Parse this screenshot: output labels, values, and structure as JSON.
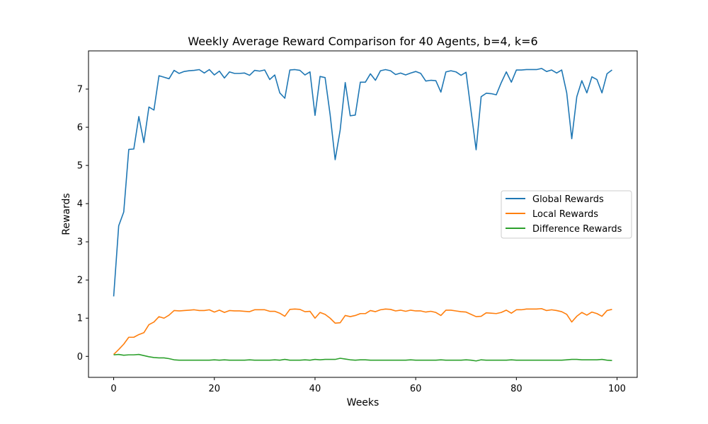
{
  "chart_data": {
    "type": "line",
    "title": "Weekly Average Reward Comparison for 40 Agents, b=4, k=6",
    "xlabel": "Weeks",
    "ylabel": "Rewards",
    "xlim": [
      -5,
      104
    ],
    "ylim": [
      -0.55,
      8.0
    ],
    "xticks": [
      0,
      20,
      40,
      60,
      80,
      100
    ],
    "yticks": [
      0,
      1,
      2,
      3,
      4,
      5,
      6,
      7
    ],
    "grid": false,
    "legend_position": "center-right",
    "series": [
      {
        "name": "Global Rewards",
        "color": "#1f77b4",
        "values": [
          1.57,
          3.42,
          3.78,
          5.42,
          5.43,
          6.28,
          5.6,
          6.53,
          6.45,
          7.35,
          7.31,
          7.27,
          7.49,
          7.41,
          7.46,
          7.48,
          7.49,
          7.51,
          7.42,
          7.51,
          7.37,
          7.47,
          7.29,
          7.45,
          7.41,
          7.41,
          7.42,
          7.36,
          7.49,
          7.47,
          7.5,
          7.25,
          7.37,
          6.9,
          6.76,
          7.5,
          7.51,
          7.49,
          7.37,
          7.45,
          6.31,
          7.33,
          7.3,
          6.33,
          5.15,
          5.93,
          7.17,
          6.3,
          6.32,
          7.18,
          7.18,
          7.4,
          7.23,
          7.48,
          7.51,
          7.48,
          7.38,
          7.42,
          7.37,
          7.42,
          7.46,
          7.41,
          7.21,
          7.23,
          7.22,
          6.92,
          7.45,
          7.48,
          7.45,
          7.36,
          7.44,
          6.42,
          5.41,
          6.8,
          6.89,
          6.88,
          6.85,
          7.17,
          7.45,
          7.18,
          7.5,
          7.5,
          7.51,
          7.51,
          7.51,
          7.54,
          7.46,
          7.5,
          7.42,
          7.5,
          6.9,
          5.7,
          6.8,
          7.22,
          6.9,
          7.32,
          7.25,
          6.9,
          7.4,
          7.5
        ]
      },
      {
        "name": "Local Rewards",
        "color": "#ff7f0e",
        "values": [
          0.05,
          0.18,
          0.32,
          0.5,
          0.5,
          0.57,
          0.62,
          0.83,
          0.9,
          1.04,
          1.0,
          1.08,
          1.2,
          1.19,
          1.2,
          1.21,
          1.22,
          1.2,
          1.2,
          1.22,
          1.16,
          1.21,
          1.15,
          1.2,
          1.19,
          1.19,
          1.18,
          1.17,
          1.22,
          1.22,
          1.22,
          1.18,
          1.18,
          1.13,
          1.05,
          1.23,
          1.24,
          1.23,
          1.17,
          1.18,
          1.0,
          1.15,
          1.1,
          1.0,
          0.87,
          0.88,
          1.07,
          1.04,
          1.07,
          1.12,
          1.12,
          1.2,
          1.17,
          1.22,
          1.24,
          1.23,
          1.19,
          1.21,
          1.18,
          1.21,
          1.19,
          1.19,
          1.16,
          1.18,
          1.15,
          1.07,
          1.21,
          1.21,
          1.19,
          1.17,
          1.16,
          1.1,
          1.04,
          1.05,
          1.14,
          1.13,
          1.12,
          1.15,
          1.21,
          1.13,
          1.22,
          1.22,
          1.24,
          1.24,
          1.24,
          1.25,
          1.2,
          1.22,
          1.2,
          1.17,
          1.1,
          0.9,
          1.05,
          1.15,
          1.08,
          1.16,
          1.12,
          1.05,
          1.2,
          1.23
        ]
      },
      {
        "name": "Difference Rewards",
        "color": "#2ca02c",
        "values": [
          0.04,
          0.05,
          0.03,
          0.04,
          0.04,
          0.05,
          0.02,
          -0.01,
          -0.03,
          -0.04,
          -0.04,
          -0.06,
          -0.09,
          -0.1,
          -0.1,
          -0.1,
          -0.1,
          -0.1,
          -0.1,
          -0.1,
          -0.09,
          -0.1,
          -0.09,
          -0.1,
          -0.1,
          -0.1,
          -0.1,
          -0.09,
          -0.1,
          -0.1,
          -0.1,
          -0.1,
          -0.09,
          -0.1,
          -0.08,
          -0.1,
          -0.1,
          -0.1,
          -0.09,
          -0.1,
          -0.08,
          -0.09,
          -0.08,
          -0.08,
          -0.08,
          -0.05,
          -0.07,
          -0.09,
          -0.1,
          -0.09,
          -0.09,
          -0.1,
          -0.1,
          -0.1,
          -0.1,
          -0.1,
          -0.1,
          -0.1,
          -0.1,
          -0.09,
          -0.1,
          -0.1,
          -0.1,
          -0.1,
          -0.1,
          -0.09,
          -0.1,
          -0.1,
          -0.1,
          -0.1,
          -0.09,
          -0.1,
          -0.12,
          -0.09,
          -0.1,
          -0.1,
          -0.1,
          -0.1,
          -0.1,
          -0.09,
          -0.1,
          -0.1,
          -0.1,
          -0.1,
          -0.1,
          -0.1,
          -0.1,
          -0.1,
          -0.1,
          -0.1,
          -0.09,
          -0.08,
          -0.08,
          -0.09,
          -0.09,
          -0.09,
          -0.09,
          -0.08,
          -0.1,
          -0.11
        ]
      }
    ]
  }
}
